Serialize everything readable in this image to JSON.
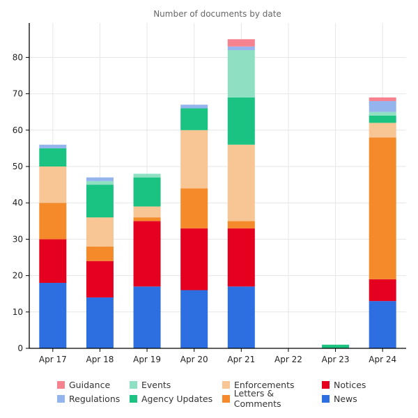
{
  "chart_data": {
    "type": "bar",
    "stacked": true,
    "title": "Number of documents by date",
    "xlabel": "",
    "ylabel": "",
    "ylim": [
      0,
      90
    ],
    "yticks": [
      0,
      10,
      20,
      30,
      40,
      50,
      60,
      70,
      80
    ],
    "grid": true,
    "legend_position": "bottom",
    "categories": [
      "Apr 17",
      "Apr 18",
      "Apr 19",
      "Apr 20",
      "Apr 21",
      "Apr 22",
      "Apr 23",
      "Apr 24"
    ],
    "series": [
      {
        "name": "News",
        "color": "#2d6ee0",
        "values": [
          18,
          14,
          17,
          16,
          17,
          0,
          0,
          13
        ]
      },
      {
        "name": "Notices",
        "color": "#e6001f",
        "values": [
          12,
          10,
          18,
          17,
          16,
          0,
          0,
          6
        ]
      },
      {
        "name": "Letters & Comments",
        "color": "#f48a2a",
        "values": [
          10,
          4,
          1,
          11,
          2,
          0,
          0,
          39
        ]
      },
      {
        "name": "Enforcements",
        "color": "#f8c595",
        "values": [
          10,
          8,
          3,
          16,
          21,
          0,
          0,
          4
        ]
      },
      {
        "name": "Agency Updates",
        "color": "#1bc383",
        "values": [
          5,
          9,
          8,
          6,
          13,
          0,
          1,
          2
        ]
      },
      {
        "name": "Events",
        "color": "#8fe0c2",
        "values": [
          0,
          1,
          1,
          0,
          13,
          0,
          0,
          1
        ]
      },
      {
        "name": "Regulations",
        "color": "#94b4ee",
        "values": [
          1,
          1,
          0,
          1,
          1,
          0,
          0,
          3
        ]
      },
      {
        "name": "Guidance",
        "color": "#f6818f",
        "values": [
          0,
          0,
          0,
          0,
          2,
          0,
          0,
          1
        ]
      }
    ]
  },
  "legend": {
    "items": [
      {
        "name": "Guidance",
        "color": "#f6818f"
      },
      {
        "name": "Events",
        "color": "#8fe0c2"
      },
      {
        "name": "Enforcements",
        "color": "#f8c595"
      },
      {
        "name": "Notices",
        "color": "#e6001f"
      },
      {
        "name": "Regulations",
        "color": "#94b4ee"
      },
      {
        "name": "Agency Updates",
        "color": "#1bc383"
      },
      {
        "name": "Letters & Comments",
        "color": "#f48a2a"
      },
      {
        "name": "News",
        "color": "#2d6ee0"
      }
    ]
  }
}
